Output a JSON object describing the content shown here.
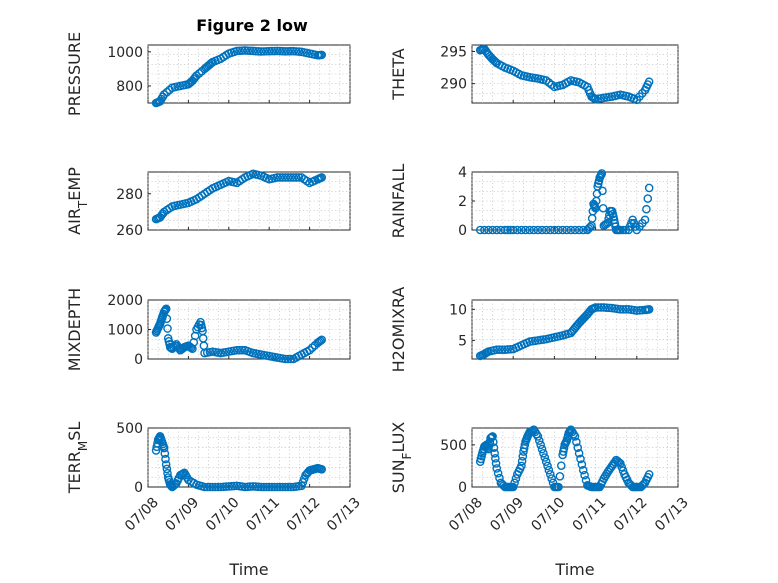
{
  "figure": {
    "title": "Figure 2 low",
    "xlabel": "Time",
    "x_ticks": [
      "07/08",
      "07/09",
      "07/10",
      "07/11",
      "07/12",
      "07/13"
    ],
    "marker_color": "#0072BD"
  },
  "chart_data": [
    {
      "type": "scatter",
      "panel": "top-left",
      "ylabel_main": "PRESSURE",
      "ylabel_sub": "",
      "ylim": [
        700,
        1040
      ],
      "yticks": [
        800,
        1000
      ],
      "xlim": [
        "07/08",
        "07/13"
      ],
      "grid": true,
      "series": [
        {
          "x": [
            8.2,
            8.3,
            8.4,
            8.6,
            8.8,
            9.0,
            9.1,
            9.2,
            9.4,
            9.5,
            9.6,
            9.8,
            10.0,
            10.2,
            10.4,
            10.6,
            10.8,
            11.0,
            11.2,
            11.4,
            11.6,
            11.8,
            12.0,
            12.2,
            12.3
          ],
          "y": [
            700,
            710,
            750,
            790,
            800,
            810,
            830,
            860,
            900,
            920,
            940,
            960,
            990,
            1005,
            1008,
            1005,
            1002,
            1004,
            1005,
            1003,
            1004,
            1000,
            990,
            980,
            982
          ]
        }
      ]
    },
    {
      "type": "scatter",
      "panel": "top-right",
      "ylabel_main": "THETA",
      "ylabel_sub": "",
      "ylim": [
        287,
        296
      ],
      "yticks": [
        290,
        295
      ],
      "xlim": [
        "07/08",
        "07/13"
      ],
      "grid": true,
      "series": [
        {
          "x": [
            8.2,
            8.3,
            8.4,
            8.5,
            8.6,
            8.8,
            9.0,
            9.2,
            9.4,
            9.6,
            9.8,
            10.0,
            10.2,
            10.4,
            10.6,
            10.8,
            10.9,
            11.0,
            11.2,
            11.4,
            11.6,
            11.8,
            12.0,
            12.2,
            12.3
          ],
          "y": [
            295.2,
            295.4,
            294.5,
            293.8,
            293.2,
            292.5,
            292.0,
            291.3,
            291.0,
            290.8,
            290.5,
            289.5,
            289.8,
            290.5,
            290.2,
            289.5,
            288.0,
            287.6,
            287.8,
            288.0,
            288.3,
            288.0,
            287.5,
            289.0,
            290.3
          ]
        }
      ]
    },
    {
      "type": "scatter",
      "panel": "row2-left",
      "ylabel_main": "AIR",
      "ylabel_sub": "T",
      "ylabel_rest": "EMP",
      "ylim": [
        260,
        292
      ],
      "yticks": [
        260,
        280
      ],
      "xlim": [
        "07/08",
        "07/13"
      ],
      "grid": true,
      "series": [
        {
          "x": [
            8.2,
            8.3,
            8.4,
            8.6,
            8.8,
            9.0,
            9.2,
            9.4,
            9.6,
            9.8,
            10.0,
            10.2,
            10.4,
            10.6,
            10.8,
            11.0,
            11.2,
            11.4,
            11.6,
            11.8,
            12.0,
            12.2,
            12.3
          ],
          "y": [
            266,
            267,
            270,
            273,
            274,
            275,
            277,
            280,
            283,
            285,
            287,
            286,
            289,
            291,
            290,
            288,
            289,
            289,
            289,
            289,
            286,
            288,
            289
          ]
        }
      ]
    },
    {
      "type": "scatter",
      "panel": "row2-right",
      "ylabel_main": "RAINFALL",
      "ylabel_sub": "",
      "ylim": [
        0,
        4
      ],
      "yticks": [
        0,
        2,
        4
      ],
      "xlim": [
        "07/08",
        "07/13"
      ],
      "grid": true,
      "series": [
        {
          "x": [
            8.2,
            8.5,
            8.8,
            9.0,
            9.3,
            9.6,
            9.9,
            10.2,
            10.5,
            10.8,
            10.9,
            10.95,
            11.0,
            11.05,
            11.1,
            11.15,
            11.2,
            11.3,
            11.35,
            11.4,
            11.45,
            11.5,
            11.6,
            11.8,
            11.9,
            12.0,
            12.2,
            12.3
          ],
          "y": [
            0,
            0,
            0,
            0,
            0,
            0,
            0,
            0,
            0,
            0,
            0.3,
            1.8,
            1.5,
            3.0,
            3.6,
            3.9,
            0.3,
            0.5,
            1.3,
            1.3,
            0.7,
            0,
            0,
            0,
            0.7,
            0,
            0.7,
            2.9
          ]
        }
      ]
    },
    {
      "type": "scatter",
      "panel": "row3-left",
      "ylabel_main": "MIXDEPTH",
      "ylabel_sub": "",
      "ylim": [
        0,
        2000
      ],
      "yticks": [
        0,
        1000,
        2000
      ],
      "xlim": [
        "07/08",
        "07/13"
      ],
      "grid": true,
      "series": [
        {
          "x": [
            8.2,
            8.25,
            8.3,
            8.35,
            8.4,
            8.45,
            8.5,
            8.55,
            8.6,
            8.7,
            8.8,
            8.9,
            9.0,
            9.1,
            9.2,
            9.3,
            9.35,
            9.4,
            9.6,
            9.8,
            10.0,
            10.2,
            10.4,
            10.6,
            10.8,
            11.0,
            11.2,
            11.4,
            11.6,
            11.8,
            12.0,
            12.2,
            12.3
          ],
          "y": [
            900,
            1050,
            1200,
            1400,
            1600,
            1700,
            700,
            400,
            350,
            500,
            300,
            400,
            450,
            350,
            1000,
            1250,
            950,
            200,
            250,
            200,
            250,
            300,
            300,
            200,
            150,
            100,
            50,
            0,
            0,
            150,
            300,
            550,
            650
          ]
        }
      ]
    },
    {
      "type": "scatter",
      "panel": "row3-right",
      "ylabel_main": "H2OMIXRA",
      "ylabel_sub": "",
      "ylim": [
        2,
        11.5
      ],
      "yticks": [
        5,
        10
      ],
      "xlim": [
        "07/08",
        "07/13"
      ],
      "grid": true,
      "series": [
        {
          "x": [
            8.2,
            8.3,
            8.4,
            8.6,
            8.8,
            9.0,
            9.2,
            9.4,
            9.6,
            9.8,
            10.0,
            10.2,
            10.4,
            10.5,
            10.6,
            10.7,
            10.8,
            10.9,
            11.0,
            11.2,
            11.4,
            11.6,
            11.8,
            12.0,
            12.2,
            12.3
          ],
          "y": [
            2.5,
            2.8,
            3.2,
            3.5,
            3.5,
            3.6,
            4.2,
            4.8,
            5.0,
            5.2,
            5.5,
            5.8,
            6.2,
            7.0,
            7.8,
            8.5,
            9.2,
            10.0,
            10.3,
            10.3,
            10.2,
            10.0,
            10.0,
            9.8,
            9.9,
            10.0
          ]
        }
      ]
    },
    {
      "type": "scatter",
      "panel": "bottom-left",
      "ylabel_main": "TERR",
      "ylabel_sub": "M",
      "ylabel_rest": "SL",
      "ylim": [
        0,
        500
      ],
      "yticks": [
        0,
        500
      ],
      "xlim": [
        "07/08",
        "07/13"
      ],
      "grid": true,
      "series": [
        {
          "x": [
            8.2,
            8.25,
            8.3,
            8.35,
            8.4,
            8.45,
            8.5,
            8.55,
            8.6,
            8.7,
            8.8,
            8.9,
            9.0,
            9.2,
            9.4,
            9.6,
            9.8,
            10.0,
            10.2,
            10.4,
            10.6,
            10.8,
            11.0,
            11.2,
            11.4,
            11.6,
            11.8,
            11.9,
            12.0,
            12.1,
            12.2,
            12.3
          ],
          "y": [
            310,
            400,
            430,
            380,
            330,
            190,
            80,
            20,
            0,
            30,
            100,
            120,
            60,
            20,
            0,
            0,
            0,
            5,
            10,
            0,
            5,
            0,
            0,
            0,
            0,
            0,
            10,
            100,
            140,
            150,
            160,
            150
          ]
        }
      ]
    },
    {
      "type": "scatter",
      "panel": "bottom-right",
      "ylabel_main": "SUN",
      "ylabel_sub": "F",
      "ylabel_rest": "LUX",
      "ylim": [
        0,
        700
      ],
      "yticks": [
        0,
        500
      ],
      "xlim": [
        "07/08",
        "07/13"
      ],
      "grid": true,
      "series": [
        {
          "x": [
            8.2,
            8.25,
            8.3,
            8.35,
            8.4,
            8.45,
            8.5,
            8.55,
            8.6,
            8.7,
            8.8,
            8.9,
            9.0,
            9.1,
            9.2,
            9.25,
            9.3,
            9.35,
            9.4,
            9.5,
            9.6,
            9.7,
            9.8,
            9.9,
            10.0,
            10.1,
            10.2,
            10.25,
            10.3,
            10.35,
            10.4,
            10.5,
            10.6,
            10.7,
            10.8,
            10.9,
            11.0,
            11.1,
            11.2,
            11.3,
            11.4,
            11.5,
            11.6,
            11.7,
            11.8,
            11.9,
            12.0,
            12.1,
            12.2,
            12.3
          ],
          "y": [
            300,
            400,
            480,
            500,
            450,
            580,
            600,
            400,
            220,
            50,
            0,
            0,
            0,
            150,
            250,
            420,
            540,
            600,
            650,
            680,
            600,
            450,
            300,
            150,
            0,
            0,
            380,
            500,
            550,
            640,
            680,
            600,
            400,
            200,
            20,
            0,
            0,
            0,
            100,
            180,
            250,
            320,
            280,
            150,
            50,
            0,
            0,
            0,
            50,
            150
          ]
        }
      ]
    }
  ]
}
